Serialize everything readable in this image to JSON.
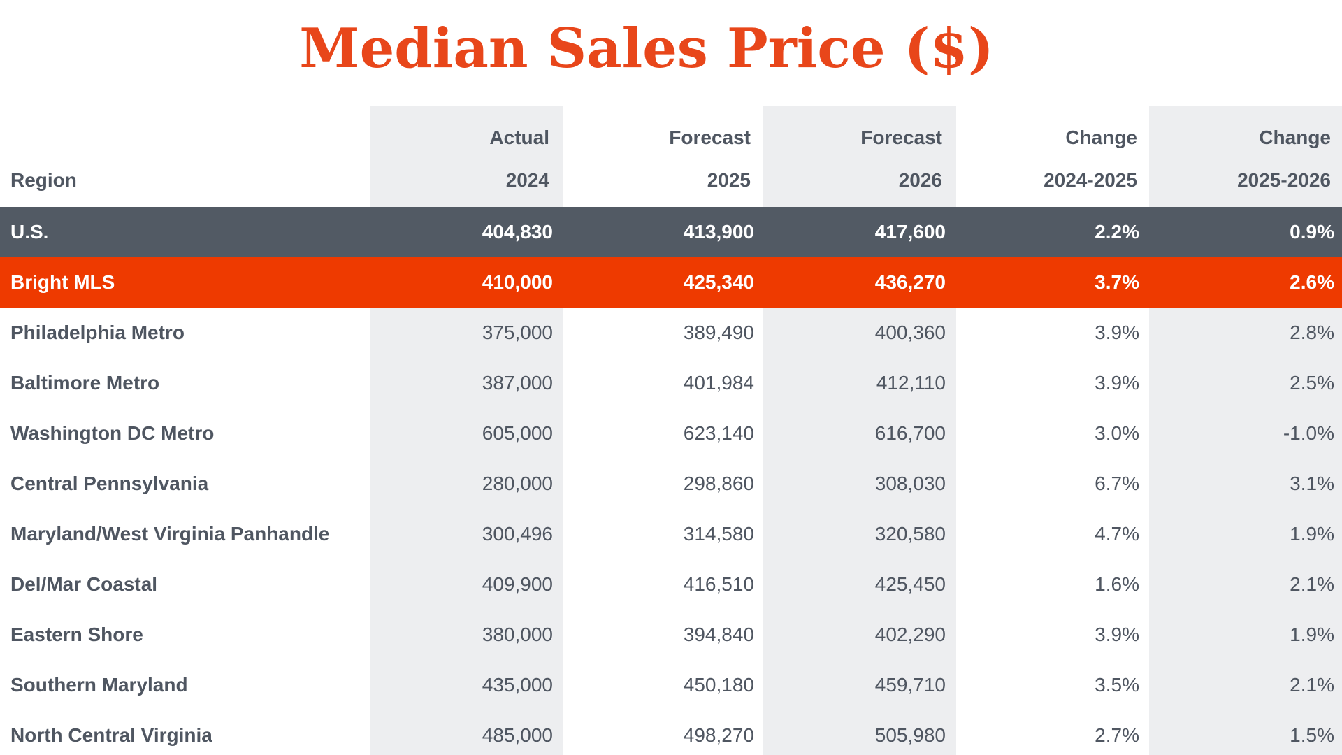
{
  "title": "Median Sales Price ($)",
  "columns": {
    "region": "Region",
    "col1": [
      "Actual",
      "2024"
    ],
    "col2": [
      "Forecast",
      "2025"
    ],
    "col3": [
      "Forecast",
      "2026"
    ],
    "col4": [
      "Change",
      "2024-2025"
    ],
    "col5": [
      "Change",
      "2025-2026"
    ]
  },
  "rows": [
    {
      "region": "U.S.",
      "values": [
        "404,830",
        "413,900",
        "417,600",
        "2.2%",
        "0.9%"
      ]
    },
    {
      "region": "Bright MLS",
      "values": [
        "410,000",
        "425,340",
        "436,270",
        "3.7%",
        "2.6%"
      ]
    },
    {
      "region": "Philadelphia Metro",
      "values": [
        "375,000",
        "389,490",
        "400,360",
        "3.9%",
        "2.8%"
      ]
    },
    {
      "region": "Baltimore Metro",
      "values": [
        "387,000",
        "401,984",
        "412,110",
        "3.9%",
        "2.5%"
      ]
    },
    {
      "region": "Washington DC Metro",
      "values": [
        "605,000",
        "623,140",
        "616,700",
        "3.0%",
        "-1.0%"
      ]
    },
    {
      "region": "Central Pennsylvania",
      "values": [
        "280,000",
        "298,860",
        "308,030",
        "6.7%",
        "3.1%"
      ]
    },
    {
      "region": "Maryland/West Virginia Panhandle",
      "values": [
        "300,496",
        "314,580",
        "320,580",
        "4.7%",
        "1.9%"
      ]
    },
    {
      "region": "Del/Mar Coastal",
      "values": [
        "409,900",
        "416,510",
        "425,450",
        "1.6%",
        "2.1%"
      ]
    },
    {
      "region": "Eastern Shore",
      "values": [
        "380,000",
        "394,840",
        "402,290",
        "3.9%",
        "1.9%"
      ]
    },
    {
      "region": "Southern Maryland",
      "values": [
        "435,000",
        "450,180",
        "459,710",
        "3.5%",
        "2.1%"
      ]
    },
    {
      "region": "North Central Virginia",
      "values": [
        "485,000",
        "498,270",
        "505,980",
        "2.7%",
        "1.5%"
      ]
    }
  ],
  "colors": {
    "title": "#e8461a",
    "us_row": "#525a64",
    "bright_row": "#ee3a00",
    "text": "#4f5661",
    "column_shade": "#edeef0"
  }
}
